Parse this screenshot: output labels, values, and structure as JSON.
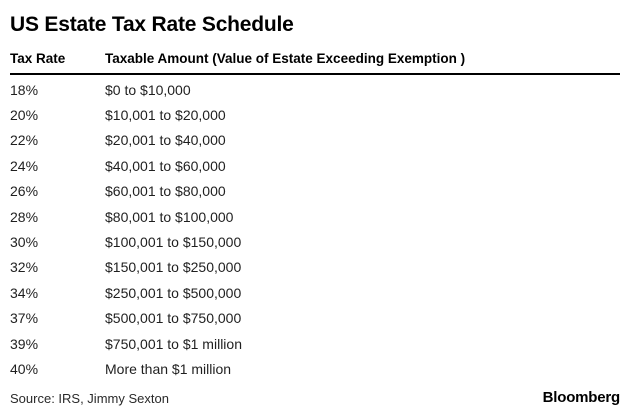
{
  "header": {
    "title": "US Estate Tax Rate Schedule"
  },
  "chart_data": {
    "type": "table",
    "title": "US Estate Tax Rate Schedule",
    "columns": [
      "Tax Rate",
      "Taxable Amount (Value of Estate Exceeding Exemption )"
    ],
    "rows": [
      [
        "18%",
        "$0 to $10,000"
      ],
      [
        "20%",
        "$10,001 to $20,000"
      ],
      [
        "22%",
        "$20,001 to $40,000"
      ],
      [
        "24%",
        "$40,001 to $60,000"
      ],
      [
        "26%",
        "$60,001 to $80,000"
      ],
      [
        "28%",
        "$80,001 to $100,000"
      ],
      [
        "30%",
        "$100,001 to $150,000"
      ],
      [
        "32%",
        "$150,001 to $250,000"
      ],
      [
        "34%",
        "$250,001 to $500,000"
      ],
      [
        "37%",
        "$500,001 to $750,000"
      ],
      [
        "39%",
        "$750,001 to $1 million"
      ],
      [
        "40%",
        "More than $1 million"
      ]
    ],
    "grid": false,
    "legend_position": "none",
    "source": "Source: IRS, Jimmy Sexton"
  },
  "footer": {
    "source": "Source: IRS, Jimmy Sexton",
    "brand": "Bloomberg"
  },
  "colors": {
    "background": "#ffffff",
    "title_text": "#000000",
    "header_text": "#000000",
    "body_text": "#1f1f1f",
    "rule": "#000000"
  }
}
